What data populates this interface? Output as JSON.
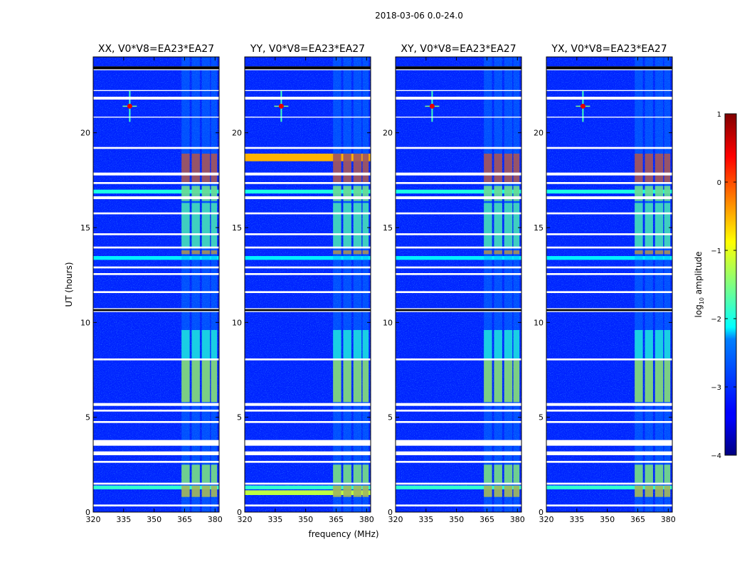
{
  "chart_data": {
    "type": "heatmap",
    "suptitle": "2018-03-06 0.0-24.0",
    "xlabel": "frequency (MHz)",
    "ylabel": "UT (hours)",
    "xlim": [
      320,
      382
    ],
    "ylim": [
      0,
      24
    ],
    "xticks": [
      320,
      335,
      350,
      365,
      380
    ],
    "yticks": [
      0,
      5,
      10,
      15,
      20
    ],
    "panels": [
      {
        "title": "XX, V0*V8=EA23*EA27",
        "pol": "XX"
      },
      {
        "title": "YY, V0*V8=EA23*EA27",
        "pol": "YY"
      },
      {
        "title": "XY, V0*V8=EA23*EA27",
        "pol": "XY"
      },
      {
        "title": "YX, V0*V8=EA23*EA27",
        "pol": "YX"
      }
    ],
    "colorbar": {
      "label": "log10 amplitude",
      "label_main": "log",
      "label_sub": "10",
      "label_rest": " amplitude",
      "vmin": -4,
      "vmax": 1,
      "ticks": [
        1,
        0,
        -1,
        -2,
        -3,
        -4
      ],
      "tick_labels": [
        "1",
        "0",
        "−1",
        "−2",
        "−3",
        "−4"
      ],
      "colormap": "jet"
    },
    "background_level": -3.2,
    "rfi_bands_mhz": [
      {
        "start": 363.5,
        "end": 367.5
      },
      {
        "start": 368.5,
        "end": 372.5
      },
      {
        "start": 373.5,
        "end": 377.5
      },
      {
        "start": 378.0,
        "end": 381.0
      }
    ],
    "flagged_time_ranges_hours": [
      [
        23.3,
        23.5
      ],
      [
        22.2,
        22.25
      ],
      [
        21.75,
        21.9
      ],
      [
        20.8,
        20.85
      ],
      [
        19.15,
        19.25
      ],
      [
        17.75,
        17.9
      ],
      [
        17.3,
        17.4
      ],
      [
        16.5,
        16.65
      ],
      [
        15.7,
        15.8
      ],
      [
        14.6,
        14.7
      ],
      [
        13.9,
        14.0
      ],
      [
        12.85,
        12.95
      ],
      [
        12.5,
        12.6
      ],
      [
        11.55,
        11.65
      ],
      [
        10.55,
        10.75
      ],
      [
        8.0,
        8.1
      ],
      [
        5.6,
        5.75
      ],
      [
        5.3,
        5.4
      ],
      [
        4.7,
        4.8
      ],
      [
        3.5,
        3.8
      ],
      [
        3.0,
        3.2
      ],
      [
        2.6,
        2.7
      ],
      [
        1.45,
        1.55
      ],
      [
        0.3,
        0.4
      ]
    ],
    "dark_flag_rows_hours": [
      [
        23.35,
        23.5
      ],
      [
        10.6,
        10.7
      ]
    ],
    "activity_blocks": [
      {
        "t0": 17.4,
        "t1": 18.9,
        "level": 0.15,
        "pols": [
          "XX",
          "YY",
          "XY",
          "YX"
        ]
      },
      {
        "t0": 16.4,
        "t1": 17.2,
        "level": -1.3,
        "pols": [
          "XX",
          "YY",
          "XY",
          "YX"
        ]
      },
      {
        "t0": 13.9,
        "t1": 16.3,
        "level": -1.6,
        "pols": [
          "XX",
          "YY",
          "XY",
          "YX"
        ]
      },
      {
        "t0": 13.6,
        "t1": 13.8,
        "level": -0.3,
        "pols": [
          "XX",
          "YY",
          "XY",
          "YX"
        ]
      },
      {
        "t0": 5.8,
        "t1": 8.0,
        "level": -1.1,
        "pols": [
          "XX",
          "YY",
          "XY",
          "YX"
        ]
      },
      {
        "t0": 8.1,
        "t1": 9.6,
        "level": -1.9,
        "pols": [
          "XX",
          "YY",
          "XY",
          "YX"
        ]
      },
      {
        "t0": 1.55,
        "t1": 2.5,
        "level": -1.2,
        "pols": [
          "XX",
          "YY",
          "XY",
          "YX"
        ]
      },
      {
        "t0": 0.8,
        "t1": 1.4,
        "level": -0.6,
        "pols": [
          "XX",
          "YY",
          "XY",
          "YX"
        ]
      }
    ],
    "horizontal_stripes": [
      {
        "t0": 18.5,
        "t1": 18.9,
        "level": -0.5,
        "pols": [
          "YY"
        ]
      },
      {
        "t0": 16.8,
        "t1": 17.0,
        "level": -2.0,
        "pols": [
          "XX",
          "YY",
          "XY",
          "YX"
        ]
      },
      {
        "t0": 13.3,
        "t1": 13.5,
        "level": -2.2,
        "pols": [
          "XX",
          "YY",
          "XY",
          "YX"
        ]
      },
      {
        "t0": 1.2,
        "t1": 1.4,
        "level": -1.9,
        "pols": [
          "XX",
          "YY",
          "XY",
          "YX"
        ]
      },
      {
        "t0": 0.9,
        "t1": 1.15,
        "level": -1.2,
        "pols": [
          "YY"
        ]
      }
    ],
    "point_sources": [
      {
        "freq_mhz": 338,
        "t_hours": 21.4,
        "level": 0.5
      }
    ]
  }
}
